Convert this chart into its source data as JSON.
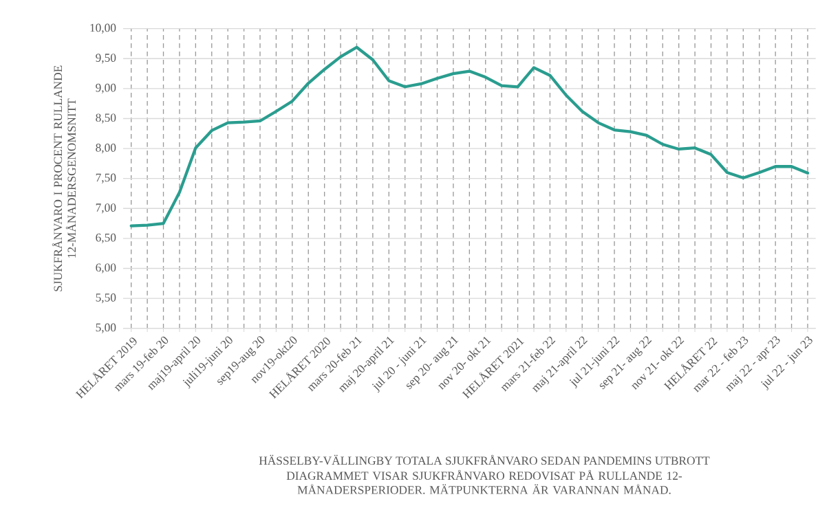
{
  "chart_data": {
    "type": "line",
    "title": "HÄSSELBY-VÄLLINGBY  TOTALA SJUKFRÅNVARO SEDAN PANDEMINS UTBROTT",
    "subtitle": "DIAGRAMMET VISAR SJUKFRÅNVARO REDOVISAT PÅ RULLANDE 12-MÅNADERSPERIODER. MÄTPUNKTERNA ÄR VARANNAN MÅNAD.",
    "ylabel": "SJUKFRÅNVARO I PROCENT RULLANDE 12-MÅNADERSGENOMSNITT",
    "categories": [
      "HELÅRET 2019",
      null,
      "mars 19-feb 20",
      null,
      "maj19-april 20",
      null,
      "juli19-juni 20",
      null,
      "sep19-aug 20",
      null,
      "nov19-okt20",
      null,
      "HELÅRET 2020",
      null,
      "mars 20-feb 21",
      null,
      "maj 20-april 21",
      null,
      "jul 20 - juni 21",
      null,
      "sep 20- aug 21",
      null,
      "nov 20- okt 21",
      null,
      "HELÅRET 2021",
      null,
      "mars 21-feb 22",
      null,
      "maj 21-april 22",
      null,
      "jul 21-juni 22",
      null,
      "sep 21- aug 22",
      null,
      "nov 21- okt 22",
      null,
      "HELÅRET 22",
      null,
      "mar 22 - feb 23",
      null,
      "maj 22 - apr 23",
      null,
      "jul 22 - jun 23"
    ],
    "series": [
      {
        "color": "#2a9d8f",
        "values": [
          6.71,
          6.72,
          6.75,
          7.27,
          8.01,
          8.3,
          8.43,
          8.44,
          8.46,
          8.62,
          8.79,
          9.09,
          9.32,
          9.53,
          9.69,
          9.48,
          9.13,
          9.03,
          9.08,
          9.17,
          9.25,
          9.29,
          9.19,
          9.05,
          9.03,
          9.35,
          9.22,
          8.89,
          8.62,
          8.43,
          8.31,
          8.28,
          8.22,
          8.07,
          7.99,
          8.01,
          7.9,
          7.6,
          7.51,
          7.6,
          7.7,
          7.7,
          7.59
        ]
      }
    ],
    "ylim": [
      5,
      10
    ],
    "yticks": [
      {
        "value": 5,
        "label": "5,00"
      },
      {
        "value": 5.5,
        "label": "5,50"
      },
      {
        "value": 6,
        "label": "6,00"
      },
      {
        "value": 6.5,
        "label": "6,50"
      },
      {
        "value": 7,
        "label": "7,00"
      },
      {
        "value": 7.5,
        "label": "7,50"
      },
      {
        "value": 8,
        "label": "8,00"
      },
      {
        "value": 8.5,
        "label": "8,50"
      },
      {
        "value": 9,
        "label": "9,00"
      },
      {
        "value": 9.5,
        "label": "9,50"
      },
      {
        "value": 10,
        "label": "10,00"
      }
    ],
    "grid": true
  }
}
